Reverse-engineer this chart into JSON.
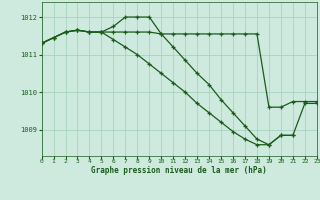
{
  "title": "Graphe pression niveau de la mer (hPa)",
  "background_color": "#ceeade",
  "grid_color": "#9ecfb8",
  "line_color": "#1a5c1a",
  "xlim": [
    0,
    23
  ],
  "ylim": [
    1008.3,
    1012.4
  ],
  "yticks": [
    1009,
    1010,
    1011,
    1012
  ],
  "xticks": [
    0,
    1,
    2,
    3,
    4,
    5,
    6,
    7,
    8,
    9,
    10,
    11,
    12,
    13,
    14,
    15,
    16,
    17,
    18,
    19,
    20,
    21,
    22,
    23
  ],
  "series": [
    {
      "x": [
        0,
        1,
        2,
        3,
        4,
        5,
        6,
        7,
        8,
        9,
        10,
        11,
        12,
        13,
        14,
        15,
        16,
        17,
        18,
        19,
        20,
        21,
        22,
        23
      ],
      "y": [
        1011.3,
        1011.45,
        1011.6,
        1011.65,
        1011.6,
        1011.6,
        1011.6,
        1011.6,
        1011.6,
        1011.6,
        1011.55,
        1011.55,
        1011.55,
        1011.55,
        1011.55,
        1011.55,
        1011.55,
        1011.55,
        1011.55,
        1009.6,
        1009.6,
        1009.75,
        1009.75,
        1009.75
      ]
    },
    {
      "x": [
        0,
        1,
        2,
        3,
        4,
        5,
        6,
        7,
        8,
        9,
        10,
        11,
        12,
        13,
        14,
        15,
        16,
        17,
        18,
        19,
        20,
        21,
        22,
        23
      ],
      "y": [
        1011.3,
        1011.45,
        1011.6,
        1011.65,
        1011.6,
        1011.6,
        1011.75,
        1012.0,
        1012.0,
        1012.0,
        1011.55,
        1011.2,
        1010.85,
        1010.5,
        1010.2,
        1009.8,
        1009.45,
        1009.1,
        1008.75,
        1008.6,
        1008.85,
        1008.85,
        1009.7,
        1009.7
      ]
    },
    {
      "x": [
        0,
        1,
        2,
        3,
        4,
        5,
        6,
        7,
        8,
        9,
        10,
        11,
        12,
        13,
        14,
        15,
        16,
        17,
        18,
        19,
        20,
        21
      ],
      "y": [
        1011.3,
        1011.45,
        1011.6,
        1011.65,
        1011.6,
        1011.6,
        1011.4,
        1011.2,
        1011.0,
        1010.75,
        1010.5,
        1010.25,
        1010.0,
        1009.7,
        1009.45,
        1009.2,
        1008.95,
        1008.75,
        1008.6,
        1008.6,
        1008.85,
        1008.85
      ]
    }
  ]
}
